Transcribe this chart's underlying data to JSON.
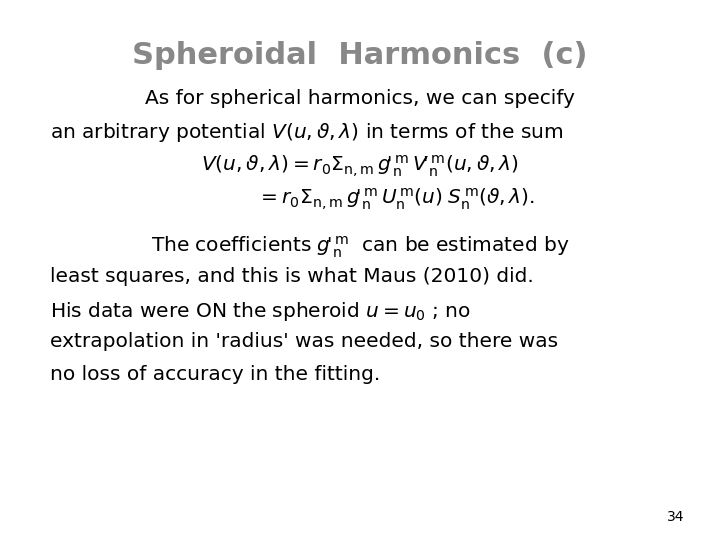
{
  "title": "Spheroidal  Harmonics  (c)",
  "title_color": "#888888",
  "title_fontsize": 22,
  "background_color": "#ffffff",
  "text_color": "#000000",
  "page_number": "34",
  "fig_width": 7.2,
  "fig_height": 5.4,
  "dpi": 100
}
